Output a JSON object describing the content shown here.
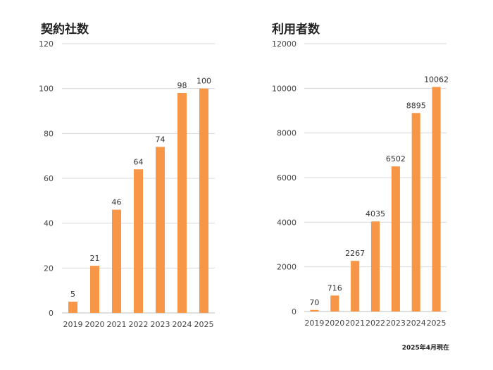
{
  "chart_data": [
    {
      "type": "bar",
      "title": "契約社数",
      "categories": [
        "2019",
        "2020",
        "2021",
        "2022",
        "2023",
        "2024",
        "2025"
      ],
      "values": [
        5,
        21,
        46,
        64,
        74,
        98,
        100
      ],
      "ylim": [
        0,
        120
      ],
      "yticks": [
        0,
        20,
        40,
        60,
        80,
        100,
        120
      ],
      "data_labels": true,
      "grid": true,
      "bar_color": "#F79646"
    },
    {
      "type": "bar",
      "title": "利用者数",
      "categories": [
        "2019",
        "2020",
        "2021",
        "2022",
        "2023",
        "2024",
        "2025"
      ],
      "values": [
        70,
        716,
        2267,
        4035,
        6502,
        8895,
        10062
      ],
      "ylim": [
        0,
        12000
      ],
      "yticks": [
        0,
        2000,
        4000,
        6000,
        8000,
        10000,
        12000
      ],
      "data_labels": true,
      "grid": true,
      "bar_color": "#F79646"
    }
  ],
  "footnote": "2025年4月現在"
}
